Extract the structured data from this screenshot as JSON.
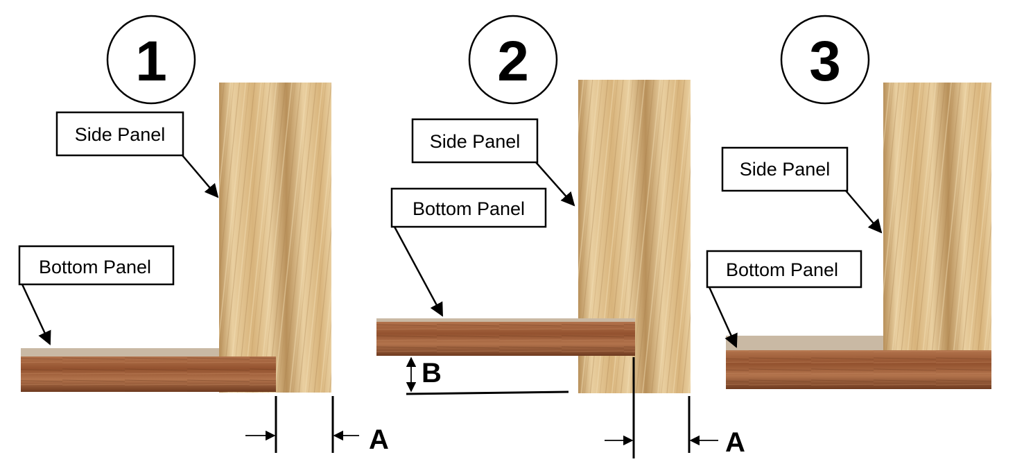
{
  "colors": {
    "side_light": "#e9cfa0",
    "side_mid": "#d8b47c",
    "side_dark": "#b8905a",
    "bottom_light": "#b2734c",
    "bottom_mid": "#93522f",
    "bottom_dark": "#6e3a1f",
    "top_face": "#c9b9a4"
  },
  "steps": [
    {
      "number": "1",
      "side_label": "Side Panel",
      "bottom_label": "Bottom Panel",
      "dim_a": "A"
    },
    {
      "number": "2",
      "side_label": "Side Panel",
      "bottom_label": "Bottom Panel",
      "dim_a": "A",
      "dim_b": "B"
    },
    {
      "number": "3",
      "side_label": "Side Panel",
      "bottom_label": "Bottom Panel"
    }
  ]
}
